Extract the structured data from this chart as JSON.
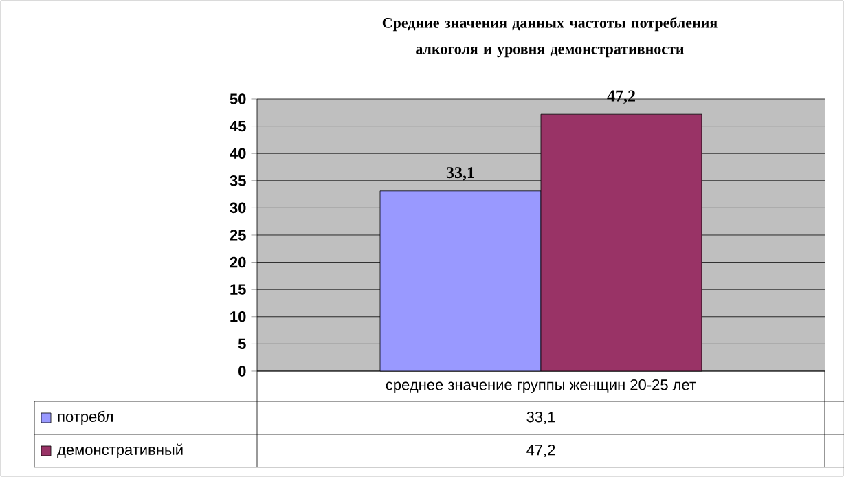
{
  "chart_data": {
    "type": "bar",
    "title": "Средние значения данных частоты потребления алкоголя и уровня демонстративности",
    "categories": [
      "среднее значение группы женщин 20-25 лет"
    ],
    "series": [
      {
        "name": "потребл",
        "color": "#9999ff",
        "values": [
          33.1
        ],
        "value_labels": [
          "33,1"
        ]
      },
      {
        "name": "демонстративный",
        "color": "#993366",
        "values": [
          47.2
        ],
        "value_labels": [
          "47,2"
        ]
      }
    ],
    "ylim": [
      0,
      50
    ],
    "yticks": [
      0,
      5,
      10,
      15,
      20,
      25,
      30,
      35,
      40,
      45,
      50
    ],
    "grid": "y",
    "legend": "bottom"
  }
}
